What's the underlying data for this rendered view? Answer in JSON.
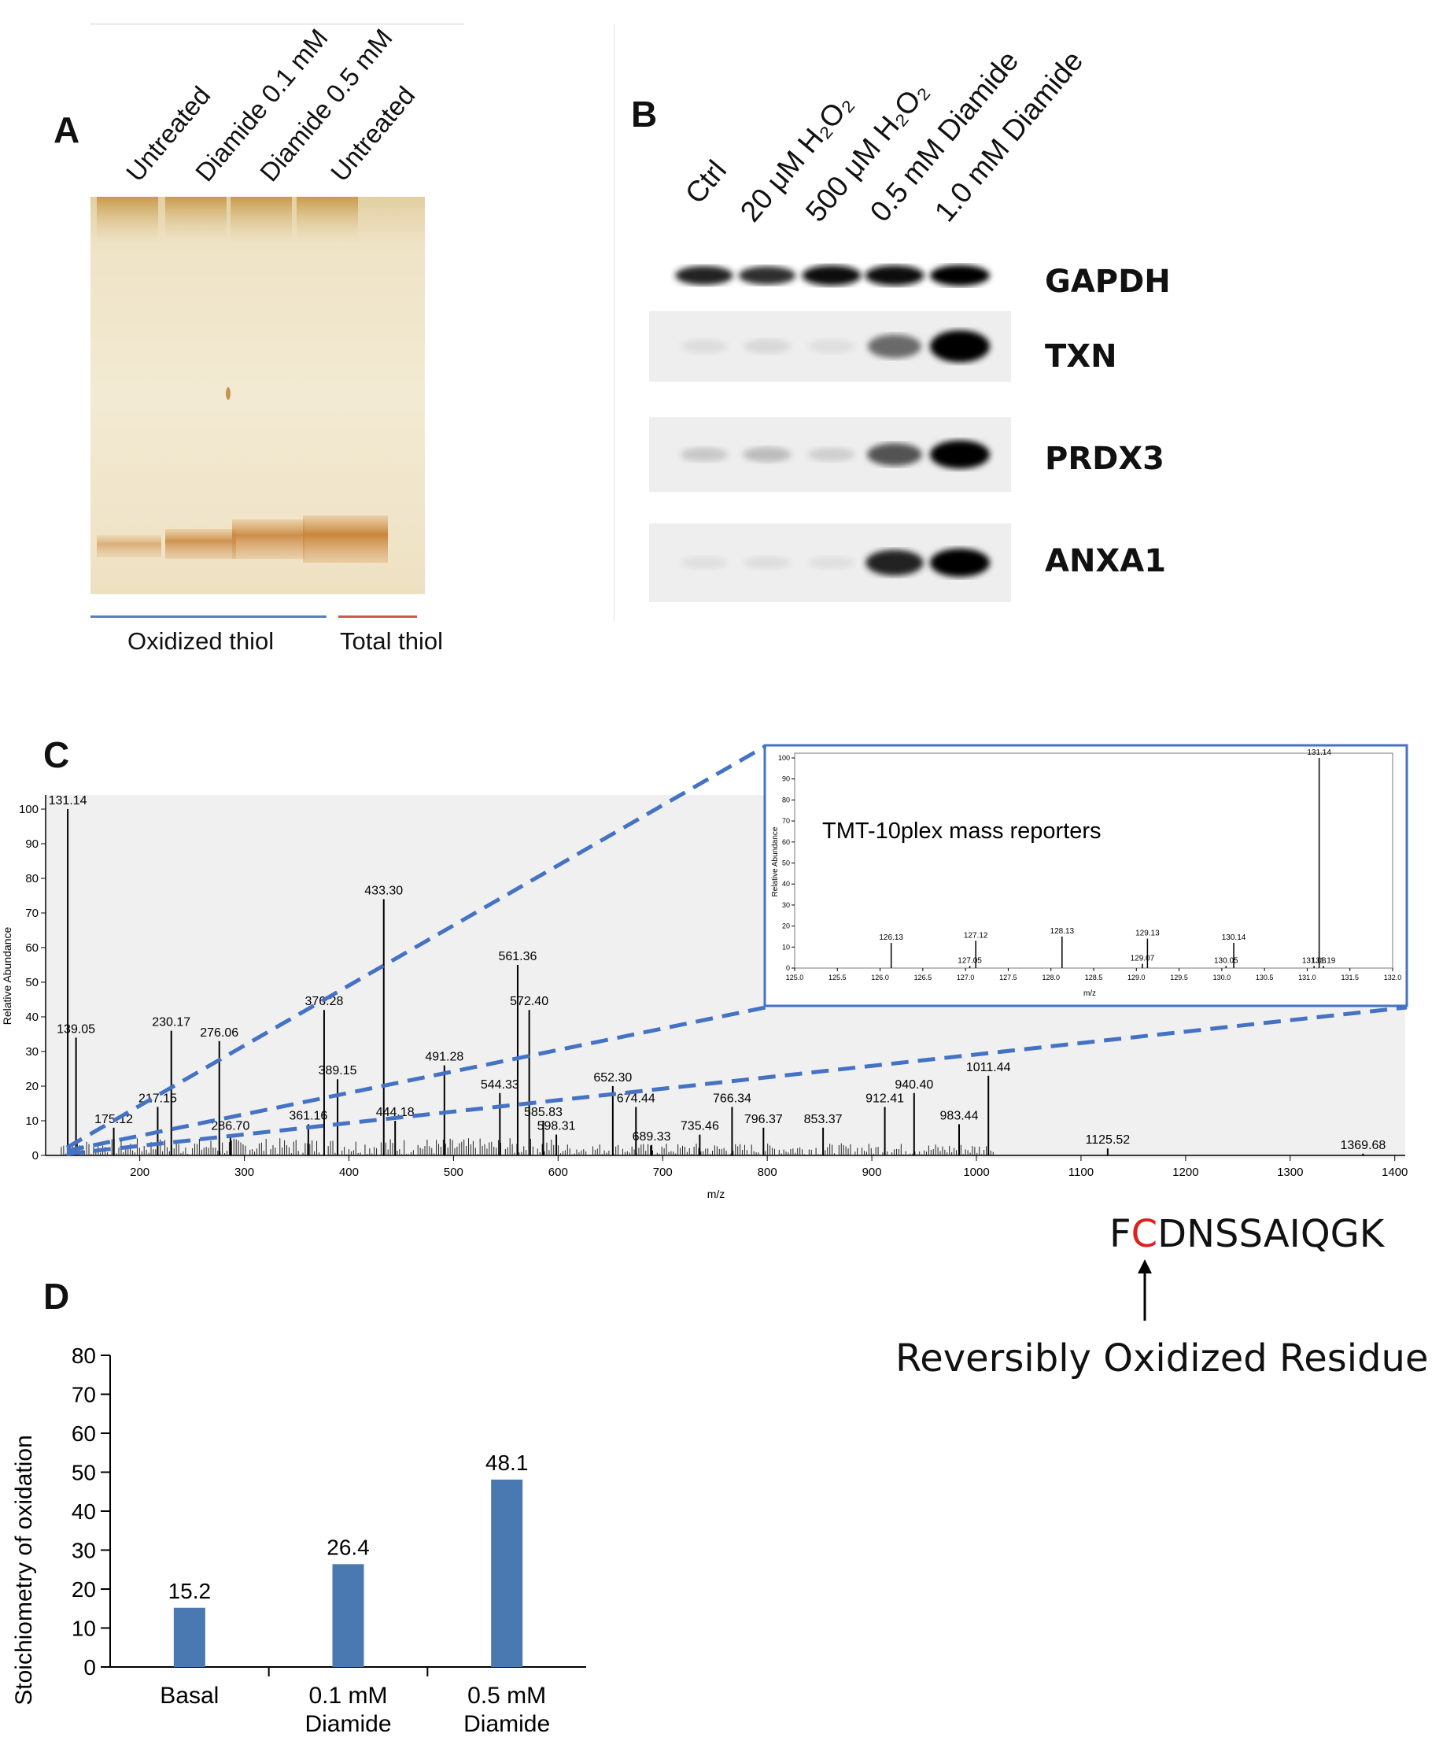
{
  "panel_a": {
    "letter": "A",
    "lanes": [
      "Untreated",
      "Diamide 0.1 mM",
      "Diamide 0.5 mM",
      "Untreated"
    ],
    "group_left": "Oxidized thiol",
    "group_right": "Total thiol",
    "group_left_color": "#5a7fc0",
    "group_right_color": "#d25555"
  },
  "panel_b": {
    "letter": "B",
    "lanes": [
      "Ctrl",
      "20 μM H₂O₂",
      "500 μM H₂O₂",
      "0.5 mM Diamide",
      "1.0 mM Diamide"
    ],
    "blots": [
      {
        "name": "GAPDH",
        "intensities": [
          0.85,
          0.8,
          0.95,
          0.95,
          1.0
        ]
      },
      {
        "name": "TXN",
        "intensities": [
          0.06,
          0.08,
          0.05,
          0.55,
          1.0
        ]
      },
      {
        "name": "PRDX3",
        "intensities": [
          0.15,
          0.2,
          0.12,
          0.65,
          1.0
        ]
      },
      {
        "name": "ANXA1",
        "intensities": [
          0.05,
          0.06,
          0.05,
          0.85,
          1.0
        ]
      }
    ]
  },
  "panel_c": {
    "letter": "C",
    "chart_data": [
      {
        "type": "bar",
        "xlabel": "m/z",
        "ylabel": "Relative Abundance",
        "xlim": [
          110,
          1410
        ],
        "ylim": [
          0,
          100
        ],
        "xticks": [
          200,
          300,
          400,
          500,
          600,
          700,
          800,
          900,
          1000,
          1100,
          1200,
          1300,
          1400
        ],
        "yticks": [
          0,
          10,
          20,
          30,
          40,
          50,
          60,
          70,
          80,
          90,
          100
        ],
        "peaks": [
          {
            "mz": 131.14,
            "y": 100,
            "label": "131.14"
          },
          {
            "mz": 139.05,
            "y": 34,
            "label": "139.05"
          },
          {
            "mz": 175.12,
            "y": 8,
            "label": "175.12"
          },
          {
            "mz": 217.15,
            "y": 14,
            "label": "217.15"
          },
          {
            "mz": 230.17,
            "y": 36,
            "label": "230.17"
          },
          {
            "mz": 276.06,
            "y": 33,
            "label": "276.06"
          },
          {
            "mz": 286.7,
            "y": 6,
            "label": "286.70"
          },
          {
            "mz": 361.16,
            "y": 9,
            "label": "361.16"
          },
          {
            "mz": 376.28,
            "y": 42,
            "label": "376.28"
          },
          {
            "mz": 389.15,
            "y": 22,
            "label": "389.15"
          },
          {
            "mz": 433.3,
            "y": 74,
            "label": "433.30"
          },
          {
            "mz": 444.18,
            "y": 10,
            "label": "444.18"
          },
          {
            "mz": 491.28,
            "y": 26,
            "label": "491.28"
          },
          {
            "mz": 544.33,
            "y": 18,
            "label": "544.33"
          },
          {
            "mz": 561.36,
            "y": 55,
            "label": "561.36"
          },
          {
            "mz": 572.4,
            "y": 42,
            "label": "572.40"
          },
          {
            "mz": 585.83,
            "y": 10,
            "label": "585.83"
          },
          {
            "mz": 598.31,
            "y": 6,
            "label": "598.31"
          },
          {
            "mz": 652.3,
            "y": 20,
            "label": "652.30"
          },
          {
            "mz": 674.44,
            "y": 14,
            "label": "674.44"
          },
          {
            "mz": 689.33,
            "y": 3,
            "label": "689.33"
          },
          {
            "mz": 735.46,
            "y": 6,
            "label": "735.46"
          },
          {
            "mz": 766.34,
            "y": 14,
            "label": "766.34"
          },
          {
            "mz": 796.37,
            "y": 8,
            "label": "796.37"
          },
          {
            "mz": 853.37,
            "y": 8,
            "label": "853.37"
          },
          {
            "mz": 912.41,
            "y": 14,
            "label": "912.41"
          },
          {
            "mz": 940.4,
            "y": 18,
            "label": "940.40"
          },
          {
            "mz": 983.44,
            "y": 9,
            "label": "983.44"
          },
          {
            "mz": 1011.44,
            "y": 23,
            "label": "1011.44"
          },
          {
            "mz": 1125.52,
            "y": 2,
            "label": "1125.52"
          },
          {
            "mz": 1369.68,
            "y": 0.5,
            "label": "1369.68"
          }
        ]
      },
      {
        "type": "bar",
        "title": "TMT-10plex mass reporters",
        "xlabel": "m/z",
        "ylabel": "Relative Abundance",
        "xlim": [
          125.0,
          132.0
        ],
        "ylim": [
          0,
          100
        ],
        "xticks": [
          "125.0",
          "125.5",
          "126.0",
          "126.5",
          "127.0",
          "127.5",
          "128.0",
          "128.5",
          "129.0",
          "129.5",
          "130.0",
          "130.5",
          "131.0",
          "131.5",
          "132.0"
        ],
        "yticks": [
          0,
          10,
          20,
          30,
          40,
          50,
          60,
          70,
          80,
          90,
          100
        ],
        "peaks": [
          {
            "mz": 126.13,
            "y": 12,
            "label": "126.13"
          },
          {
            "mz": 127.05,
            "y": 1,
            "label": "127.05"
          },
          {
            "mz": 127.12,
            "y": 13,
            "label": "127.12"
          },
          {
            "mz": 128.13,
            "y": 15,
            "label": "128.13"
          },
          {
            "mz": 129.07,
            "y": 2,
            "label": "129.07"
          },
          {
            "mz": 129.13,
            "y": 14,
            "label": "129.13"
          },
          {
            "mz": 130.05,
            "y": 1,
            "label": "130.05"
          },
          {
            "mz": 130.14,
            "y": 12,
            "label": "130.14"
          },
          {
            "mz": 131.08,
            "y": 1,
            "label": "131.08"
          },
          {
            "mz": 131.14,
            "y": 100,
            "label": "131.14"
          },
          {
            "mz": 131.19,
            "y": 1,
            "label": "131.19"
          }
        ]
      }
    ],
    "peptide": {
      "prefix": "F",
      "residue": "C",
      "suffix": "DNSSAIQGK",
      "residue_color": "#e02020"
    },
    "residue_note": "Reversibly Oxidized Residue",
    "zoom_line_color": "#4472c4"
  },
  "panel_d": {
    "letter": "D",
    "chart_data": {
      "type": "bar",
      "categories": [
        "Basal",
        "0.1 mM Diamide",
        "0.5 mM Diamide"
      ],
      "category_lines": [
        [
          "Basal"
        ],
        [
          "0.1 mM",
          "Diamide"
        ],
        [
          "0.5 mM",
          "Diamide"
        ]
      ],
      "values": [
        15.2,
        26.4,
        48.1
      ],
      "value_labels": [
        "15.2",
        "26.4",
        "48.1"
      ],
      "ylabel": "Stoichiometry of oxidation",
      "ylim": [
        0,
        80
      ],
      "yticks": [
        0,
        10,
        20,
        30,
        40,
        50,
        60,
        70,
        80
      ],
      "bar_color": "#4a78b0"
    }
  }
}
